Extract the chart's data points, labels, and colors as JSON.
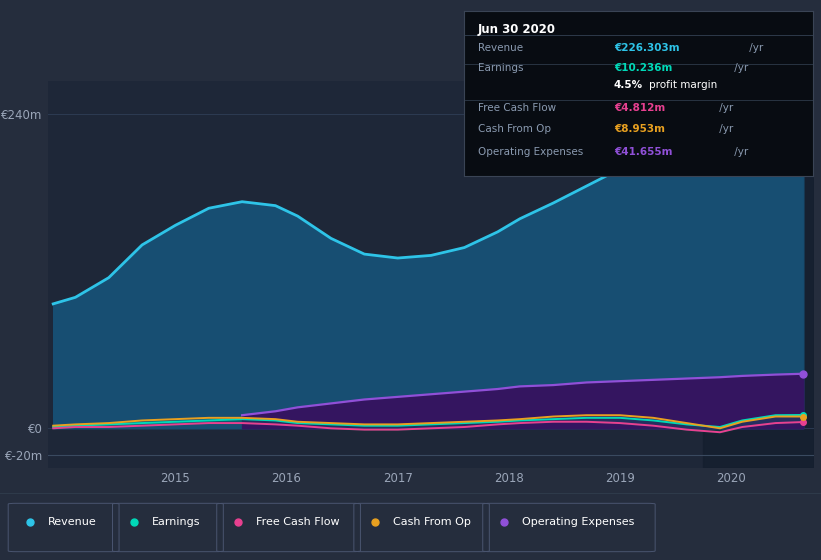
{
  "bg_color": "#252d3d",
  "plot_bg_color": "#1e2738",
  "grid_color": "#2e3d55",
  "x_years": [
    2013.9,
    2014.1,
    2014.4,
    2014.7,
    2015.0,
    2015.3,
    2015.6,
    2015.9,
    2016.1,
    2016.4,
    2016.7,
    2017.0,
    2017.3,
    2017.6,
    2017.9,
    2018.1,
    2018.4,
    2018.7,
    2019.0,
    2019.3,
    2019.6,
    2019.9,
    2020.1,
    2020.4,
    2020.65
  ],
  "revenue": [
    95,
    100,
    115,
    140,
    155,
    168,
    173,
    170,
    162,
    145,
    133,
    130,
    132,
    138,
    150,
    160,
    172,
    185,
    198,
    210,
    220,
    230,
    240,
    237,
    226
  ],
  "earnings": [
    1,
    2,
    3,
    4,
    5,
    6,
    7,
    6,
    4,
    3,
    2,
    2,
    3,
    4,
    5,
    6,
    7,
    8,
    8,
    6,
    3,
    1,
    6,
    10,
    10.2
  ],
  "free_cash_flow": [
    0,
    1,
    1,
    2,
    3,
    4,
    4,
    3,
    2,
    0,
    -1,
    -1,
    0,
    1,
    3,
    4,
    5,
    5,
    4,
    2,
    -1,
    -3,
    1,
    4,
    4.8
  ],
  "cash_from_op": [
    2,
    3,
    4,
    6,
    7,
    8,
    8,
    7,
    5,
    4,
    3,
    3,
    4,
    5,
    6,
    7,
    9,
    10,
    10,
    8,
    4,
    0,
    5,
    9,
    9.0
  ],
  "op_expenses_x": [
    2015.6,
    2015.9,
    2016.1,
    2016.4,
    2016.7,
    2017.0,
    2017.3,
    2017.6,
    2017.9,
    2018.1,
    2018.4,
    2018.7,
    2019.0,
    2019.3,
    2019.6,
    2019.9,
    2020.1,
    2020.4,
    2020.65
  ],
  "op_expenses": [
    10,
    13,
    16,
    19,
    22,
    24,
    26,
    28,
    30,
    32,
    33,
    35,
    36,
    37,
    38,
    39,
    40,
    41,
    41.655
  ],
  "revenue_color": "#2ec4e8",
  "revenue_fill_color": "#174e72",
  "earnings_color": "#00d9b8",
  "free_cash_flow_color": "#e84090",
  "cash_from_op_color": "#e8a020",
  "op_expenses_color": "#9050d8",
  "op_expenses_fill_color": "#341560",
  "dark_region_color": "#141e2e",
  "ytick_positions": [
    -20,
    0,
    240
  ],
  "ytick_labels": [
    "€-20m",
    "€0",
    "€240m"
  ],
  "xtick_positions": [
    2015,
    2016,
    2017,
    2018,
    2019,
    2020
  ],
  "xlim": [
    2013.85,
    2020.75
  ],
  "ylim": [
    -30,
    265
  ],
  "infobox_title": "Jun 30 2020",
  "infobox_rows": [
    {
      "label": "Revenue",
      "value": "€226.303m",
      "unit": " /yr",
      "value_color": "#2ec4e8",
      "sep_after": true
    },
    {
      "label": "Earnings",
      "value": "€10.236m",
      "unit": " /yr",
      "value_color": "#00d9b8",
      "sep_after": false
    },
    {
      "label": "",
      "bold": "4.5%",
      "rest": " profit margin",
      "sep_after": true
    },
    {
      "label": "Free Cash Flow",
      "value": "€4.812m",
      "unit": " /yr",
      "value_color": "#e84090",
      "sep_after": false
    },
    {
      "label": "Cash From Op",
      "value": "€8.953m",
      "unit": " /yr",
      "value_color": "#e8a020",
      "sep_after": false
    },
    {
      "label": "Operating Expenses",
      "value": "€41.655m",
      "unit": " /yr",
      "value_color": "#9050d8",
      "sep_after": false
    }
  ],
  "legend_items": [
    {
      "label": "Revenue",
      "color": "#2ec4e8"
    },
    {
      "label": "Earnings",
      "color": "#00d9b8"
    },
    {
      "label": "Free Cash Flow",
      "color": "#e84090"
    },
    {
      "label": "Cash From Op",
      "color": "#e8a020"
    },
    {
      "label": "Operating Expenses",
      "color": "#9050d8"
    }
  ]
}
